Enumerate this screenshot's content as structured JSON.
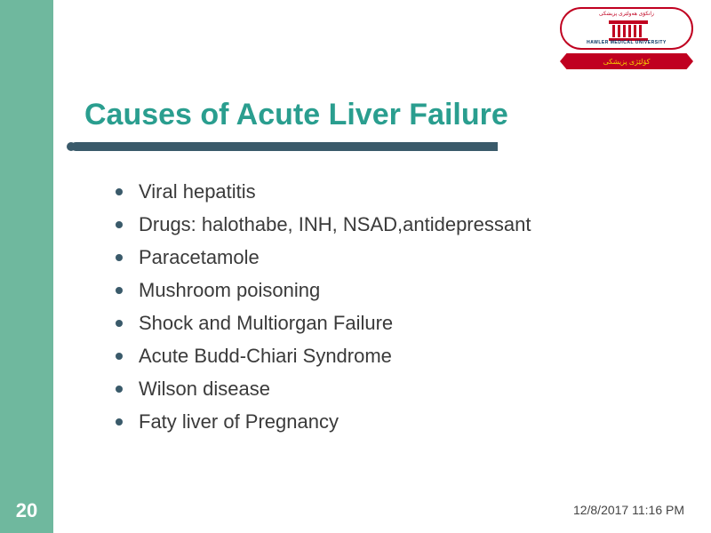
{
  "sidebar": {
    "background_color": "#6fb89e",
    "slide_number": "20",
    "slide_number_color": "#ffffff"
  },
  "logo": {
    "arch_text": "زانكۆى هەولێرى پزیشكى",
    "university_name": "HAWLER MEDICAL UNIVERSITY",
    "banner_text": "كۆلێژى پزیشكى",
    "border_color": "#c00020",
    "banner_color": "#c00020",
    "banner_text_color": "#f5d000"
  },
  "title": {
    "text": "Causes of Acute Liver Failure",
    "color": "#2a9e8f",
    "fontsize": 34
  },
  "underline": {
    "color": "#3a5a6a"
  },
  "bullets": {
    "items": [
      "Viral hepatitis",
      "Drugs: halothabe, INH, NSAD,antidepressant",
      "Paracetamole",
      "Mushroom poisoning",
      "Shock and Multiorgan Failure",
      "Acute Budd-Chiari Syndrome",
      "Wilson disease",
      "Faty liver of Pregnancy"
    ],
    "bullet_color": "#3a5a6a",
    "text_color": "#3a3a3a",
    "fontsize": 22
  },
  "timestamp": {
    "text": "12/8/2017 11:16 PM",
    "color": "#444444"
  }
}
